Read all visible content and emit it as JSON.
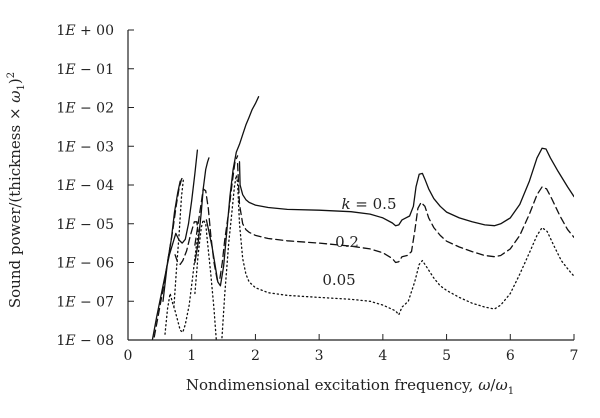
{
  "chart_data": {
    "type": "line",
    "title": "",
    "xlabel": {
      "text": "Nondimensional excitation frequency, ",
      "omega": "ω",
      "slash": "/",
      "sub": "1"
    },
    "ylabel": {
      "text": "Sound power/(thickness × ",
      "omega": "ω",
      "sub": "1",
      "close": ")",
      "sup": "2"
    },
    "xlim": [
      0,
      7
    ],
    "ylim_log10": [
      -8,
      0
    ],
    "x_ticks": [
      "0",
      "1",
      "2",
      "3",
      "4",
      "5",
      "6",
      "7"
    ],
    "y_ticks": [
      {
        "value": 0,
        "label_e": "E",
        "label_rest": " + 00"
      },
      {
        "value": -1,
        "label_e": "E",
        "label_rest": " − 01"
      },
      {
        "value": -2,
        "label_e": "E",
        "label_rest": " − 02"
      },
      {
        "value": -3,
        "label_e": "E",
        "label_rest": " − 03"
      },
      {
        "value": -4,
        "label_e": "E",
        "label_rest": " − 04"
      },
      {
        "value": -5,
        "label_e": "E",
        "label_rest": " − 05"
      },
      {
        "value": -6,
        "label_e": "E",
        "label_rest": " − 06"
      },
      {
        "value": -7,
        "label_e": "E",
        "label_rest": " − 07"
      },
      {
        "value": -8,
        "label_e": "E",
        "label_rest": " − 08"
      }
    ],
    "y_tick_prefix": "1",
    "grid": false,
    "annotations": [
      {
        "var": "k",
        "eq": " = 0.5",
        "x": 3.35,
        "y_log10": -4.62
      },
      {
        "var": "",
        "eq": "0.2",
        "x": 3.25,
        "y_log10": -5.6
      },
      {
        "var": "",
        "eq": "0.05",
        "x": 3.05,
        "y_log10": -6.58
      }
    ],
    "series": [
      {
        "dash": "solid",
        "points": [
          [
            0.36,
            -8.2
          ],
          [
            0.45,
            -7.4
          ],
          [
            0.55,
            -6.6
          ],
          [
            0.65,
            -5.8
          ],
          [
            0.75,
            -5.25
          ],
          [
            0.8,
            -5.42
          ],
          [
            0.85,
            -5.5
          ],
          [
            0.9,
            -5.4
          ],
          [
            0.95,
            -5.0
          ],
          [
            1.0,
            -4.4
          ],
          [
            1.05,
            -3.7
          ],
          [
            1.09,
            -3.1
          ],
          [
            null,
            null
          ],
          [
            0.55,
            -7.0
          ],
          [
            0.62,
            -6.0
          ],
          [
            0.68,
            -5.4
          ],
          [
            0.73,
            -4.7
          ],
          [
            0.78,
            -4.2
          ],
          [
            0.82,
            -3.9
          ],
          [
            null,
            null
          ],
          [
            1.05,
            -6.0
          ],
          [
            1.1,
            -5.5
          ],
          [
            1.15,
            -4.7
          ],
          [
            1.18,
            -4.1
          ],
          [
            1.22,
            -3.6
          ],
          [
            1.25,
            -3.4
          ],
          [
            1.27,
            -3.3
          ],
          [
            null,
            null
          ],
          [
            1.23,
            -4.9
          ],
          [
            1.27,
            -5.2
          ],
          [
            1.32,
            -5.6
          ],
          [
            1.37,
            -6.1
          ],
          [
            1.41,
            -6.5
          ],
          [
            1.45,
            -6.6
          ],
          [
            1.5,
            -6.1
          ],
          [
            1.55,
            -5.2
          ],
          [
            1.6,
            -4.3
          ],
          [
            1.65,
            -3.6
          ],
          [
            1.7,
            -3.15
          ],
          [
            1.75,
            -2.95
          ],
          [
            1.8,
            -2.7
          ],
          [
            1.85,
            -2.45
          ],
          [
            1.9,
            -2.25
          ],
          [
            1.95,
            -2.05
          ],
          [
            2.0,
            -1.9
          ],
          [
            2.05,
            -1.72
          ],
          [
            null,
            null
          ],
          [
            1.75,
            -3.4
          ],
          [
            1.76,
            -4.0
          ],
          [
            1.8,
            -4.25
          ],
          [
            1.85,
            -4.38
          ],
          [
            1.9,
            -4.45
          ],
          [
            2.0,
            -4.52
          ],
          [
            2.2,
            -4.58
          ],
          [
            2.5,
            -4.63
          ],
          [
            3.0,
            -4.65
          ],
          [
            3.5,
            -4.69
          ],
          [
            3.8,
            -4.75
          ],
          [
            4.0,
            -4.85
          ],
          [
            4.15,
            -4.98
          ],
          [
            4.2,
            -5.05
          ],
          [
            4.25,
            -5.03
          ],
          [
            4.3,
            -4.9
          ],
          [
            4.36,
            -4.85
          ],
          [
            4.42,
            -4.8
          ],
          [
            4.48,
            -4.55
          ],
          [
            4.52,
            -4.05
          ],
          [
            4.57,
            -3.72
          ],
          [
            4.62,
            -3.7
          ],
          [
            4.66,
            -3.85
          ],
          [
            4.72,
            -4.1
          ],
          [
            4.8,
            -4.35
          ],
          [
            4.9,
            -4.55
          ],
          [
            5.0,
            -4.7
          ],
          [
            5.2,
            -4.85
          ],
          [
            5.4,
            -4.95
          ],
          [
            5.6,
            -5.03
          ],
          [
            5.75,
            -5.05
          ],
          [
            5.85,
            -5.0
          ],
          [
            6.0,
            -4.85
          ],
          [
            6.15,
            -4.5
          ],
          [
            6.3,
            -3.9
          ],
          [
            6.42,
            -3.3
          ],
          [
            6.5,
            -3.05
          ],
          [
            6.56,
            -3.07
          ],
          [
            6.63,
            -3.3
          ],
          [
            6.75,
            -3.65
          ],
          [
            6.9,
            -4.05
          ],
          [
            7.0,
            -4.3
          ]
        ]
      },
      {
        "dash": "dashed",
        "points": [
          [
            0.38,
            -8.2
          ],
          [
            0.46,
            -7.5
          ],
          [
            0.55,
            -6.7
          ],
          [
            0.63,
            -5.9
          ],
          [
            0.7,
            -5.2
          ],
          [
            0.76,
            -4.5
          ],
          [
            0.8,
            -4.1
          ],
          [
            0.84,
            -3.85
          ],
          [
            0.86,
            -3.8
          ],
          [
            null,
            null
          ],
          [
            0.74,
            -5.8
          ],
          [
            0.78,
            -6.0
          ],
          [
            0.82,
            -6.05
          ],
          [
            0.86,
            -5.95
          ],
          [
            0.92,
            -5.7
          ],
          [
            0.98,
            -5.3
          ],
          [
            1.04,
            -4.95
          ],
          [
            1.08,
            -4.95
          ],
          [
            1.1,
            -5.2
          ],
          [
            null,
            null
          ],
          [
            1.05,
            -5.55
          ],
          [
            1.1,
            -5.0
          ],
          [
            1.15,
            -4.45
          ],
          [
            1.18,
            -4.1
          ],
          [
            1.22,
            -4.15
          ],
          [
            1.26,
            -4.6
          ],
          [
            1.3,
            -5.3
          ],
          [
            1.35,
            -6.0
          ],
          [
            1.4,
            -6.45
          ],
          [
            1.44,
            -6.45
          ],
          [
            1.48,
            -6.0
          ],
          [
            1.52,
            -5.4
          ],
          [
            1.58,
            -4.7
          ],
          [
            1.63,
            -4.0
          ],
          [
            1.68,
            -3.4
          ],
          [
            1.72,
            -3.25
          ],
          [
            null,
            null
          ],
          [
            1.72,
            -3.45
          ],
          [
            1.75,
            -4.5
          ],
          [
            1.8,
            -5.0
          ],
          [
            1.85,
            -5.15
          ],
          [
            1.9,
            -5.22
          ],
          [
            2.0,
            -5.3
          ],
          [
            2.2,
            -5.38
          ],
          [
            2.5,
            -5.44
          ],
          [
            3.0,
            -5.5
          ],
          [
            3.5,
            -5.58
          ],
          [
            3.8,
            -5.65
          ],
          [
            4.0,
            -5.75
          ],
          [
            4.15,
            -5.9
          ],
          [
            4.2,
            -6.0
          ],
          [
            4.25,
            -5.98
          ],
          [
            4.3,
            -5.85
          ],
          [
            4.38,
            -5.82
          ],
          [
            4.45,
            -5.72
          ],
          [
            4.5,
            -5.2
          ],
          [
            4.55,
            -4.6
          ],
          [
            4.6,
            -4.45
          ],
          [
            4.66,
            -4.55
          ],
          [
            4.72,
            -4.85
          ],
          [
            4.8,
            -5.1
          ],
          [
            4.9,
            -5.3
          ],
          [
            5.0,
            -5.45
          ],
          [
            5.2,
            -5.6
          ],
          [
            5.4,
            -5.72
          ],
          [
            5.6,
            -5.82
          ],
          [
            5.75,
            -5.85
          ],
          [
            5.85,
            -5.82
          ],
          [
            6.0,
            -5.65
          ],
          [
            6.15,
            -5.3
          ],
          [
            6.3,
            -4.75
          ],
          [
            6.42,
            -4.25
          ],
          [
            6.5,
            -4.05
          ],
          [
            6.57,
            -4.1
          ],
          [
            6.65,
            -4.35
          ],
          [
            6.78,
            -4.8
          ],
          [
            6.9,
            -5.15
          ],
          [
            7.0,
            -5.35
          ]
        ]
      },
      {
        "dash": "dotted",
        "points": [
          [
            0.58,
            -7.85
          ],
          [
            0.62,
            -7.2
          ],
          [
            0.66,
            -6.8
          ],
          [
            0.7,
            -7.05
          ],
          [
            0.74,
            -7.25
          ],
          [
            0.78,
            -7.5
          ],
          [
            0.82,
            -7.75
          ],
          [
            0.86,
            -7.8
          ],
          [
            0.9,
            -7.6
          ],
          [
            0.96,
            -7.1
          ],
          [
            1.02,
            -6.3
          ],
          [
            1.07,
            -5.6
          ],
          [
            1.1,
            -5.3
          ],
          [
            1.12,
            -5.25
          ],
          [
            null,
            null
          ],
          [
            0.72,
            -7.15
          ],
          [
            0.76,
            -6.2
          ],
          [
            0.8,
            -5.3
          ],
          [
            0.84,
            -4.3
          ],
          [
            0.87,
            -3.85
          ],
          [
            null,
            null
          ],
          [
            1.05,
            -6.8
          ],
          [
            1.1,
            -5.8
          ],
          [
            1.15,
            -5.1
          ],
          [
            1.18,
            -4.9
          ],
          [
            1.22,
            -5.0
          ],
          [
            1.25,
            -5.5
          ],
          [
            1.3,
            -6.3
          ],
          [
            1.35,
            -7.2
          ],
          [
            1.39,
            -8.1
          ],
          [
            null,
            null
          ],
          [
            1.47,
            -8.05
          ],
          [
            1.52,
            -6.8
          ],
          [
            1.58,
            -5.5
          ],
          [
            1.63,
            -4.7
          ],
          [
            1.67,
            -4.05
          ],
          [
            1.7,
            -3.75
          ],
          [
            1.72,
            -3.95
          ],
          [
            1.75,
            -5.0
          ],
          [
            1.8,
            -5.9
          ],
          [
            1.85,
            -6.3
          ],
          [
            1.9,
            -6.5
          ],
          [
            2.0,
            -6.65
          ],
          [
            2.2,
            -6.78
          ],
          [
            2.5,
            -6.85
          ],
          [
            3.0,
            -6.9
          ],
          [
            3.5,
            -6.95
          ],
          [
            3.8,
            -7.0
          ],
          [
            4.0,
            -7.1
          ],
          [
            4.2,
            -7.25
          ],
          [
            4.25,
            -7.35
          ],
          [
            4.3,
            -7.15
          ],
          [
            4.4,
            -7.0
          ],
          [
            4.5,
            -6.5
          ],
          [
            4.57,
            -6.05
          ],
          [
            4.62,
            -5.95
          ],
          [
            4.7,
            -6.15
          ],
          [
            4.8,
            -6.4
          ],
          [
            4.9,
            -6.6
          ],
          [
            5.0,
            -6.72
          ],
          [
            5.2,
            -6.9
          ],
          [
            5.4,
            -7.05
          ],
          [
            5.6,
            -7.15
          ],
          [
            5.75,
            -7.2
          ],
          [
            5.85,
            -7.1
          ],
          [
            6.0,
            -6.8
          ],
          [
            6.15,
            -6.3
          ],
          [
            6.3,
            -5.75
          ],
          [
            6.42,
            -5.3
          ],
          [
            6.5,
            -5.1
          ],
          [
            6.58,
            -5.2
          ],
          [
            6.68,
            -5.55
          ],
          [
            6.8,
            -5.95
          ],
          [
            6.92,
            -6.2
          ],
          [
            7.0,
            -6.35
          ]
        ]
      }
    ]
  }
}
